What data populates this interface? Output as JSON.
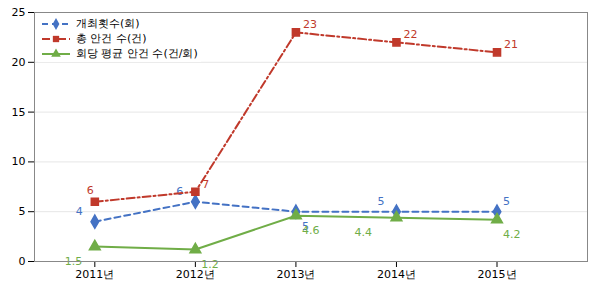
{
  "chart_data": {
    "type": "line",
    "x": [
      2011,
      2012,
      2013,
      2014,
      2015
    ],
    "xlim": [
      2010.4,
      2015.9
    ],
    "xticks": [
      {
        "value": 2011,
        "label": "2011년"
      },
      {
        "value": 2012,
        "label": "2012년"
      },
      {
        "value": 2013,
        "label": "2013년"
      },
      {
        "value": 2014,
        "label": "2014년"
      },
      {
        "value": 2015,
        "label": "2015년"
      }
    ],
    "ylim": [
      0,
      25
    ],
    "yticks": [
      0,
      5,
      10,
      15,
      20,
      25
    ],
    "grid": "y",
    "legend": "upper left",
    "data_labels": true,
    "series": [
      {
        "name": "개최횟수(회)",
        "color": "#4472C4",
        "marker": "diamond",
        "line_style": "dashed",
        "values": [
          4,
          6,
          5,
          5,
          5
        ]
      },
      {
        "name": "총 안건 수(건)",
        "color": "#C0392B",
        "marker": "square",
        "line_style": "dashdot",
        "values": [
          6,
          7,
          23,
          22,
          21
        ]
      },
      {
        "name": "회당 평균 안건 수(건/회)",
        "color": "#70AD47",
        "marker": "triangle",
        "line_style": "solid",
        "values": [
          1.5,
          1.2,
          4.6,
          4.4,
          4.2
        ]
      }
    ]
  }
}
